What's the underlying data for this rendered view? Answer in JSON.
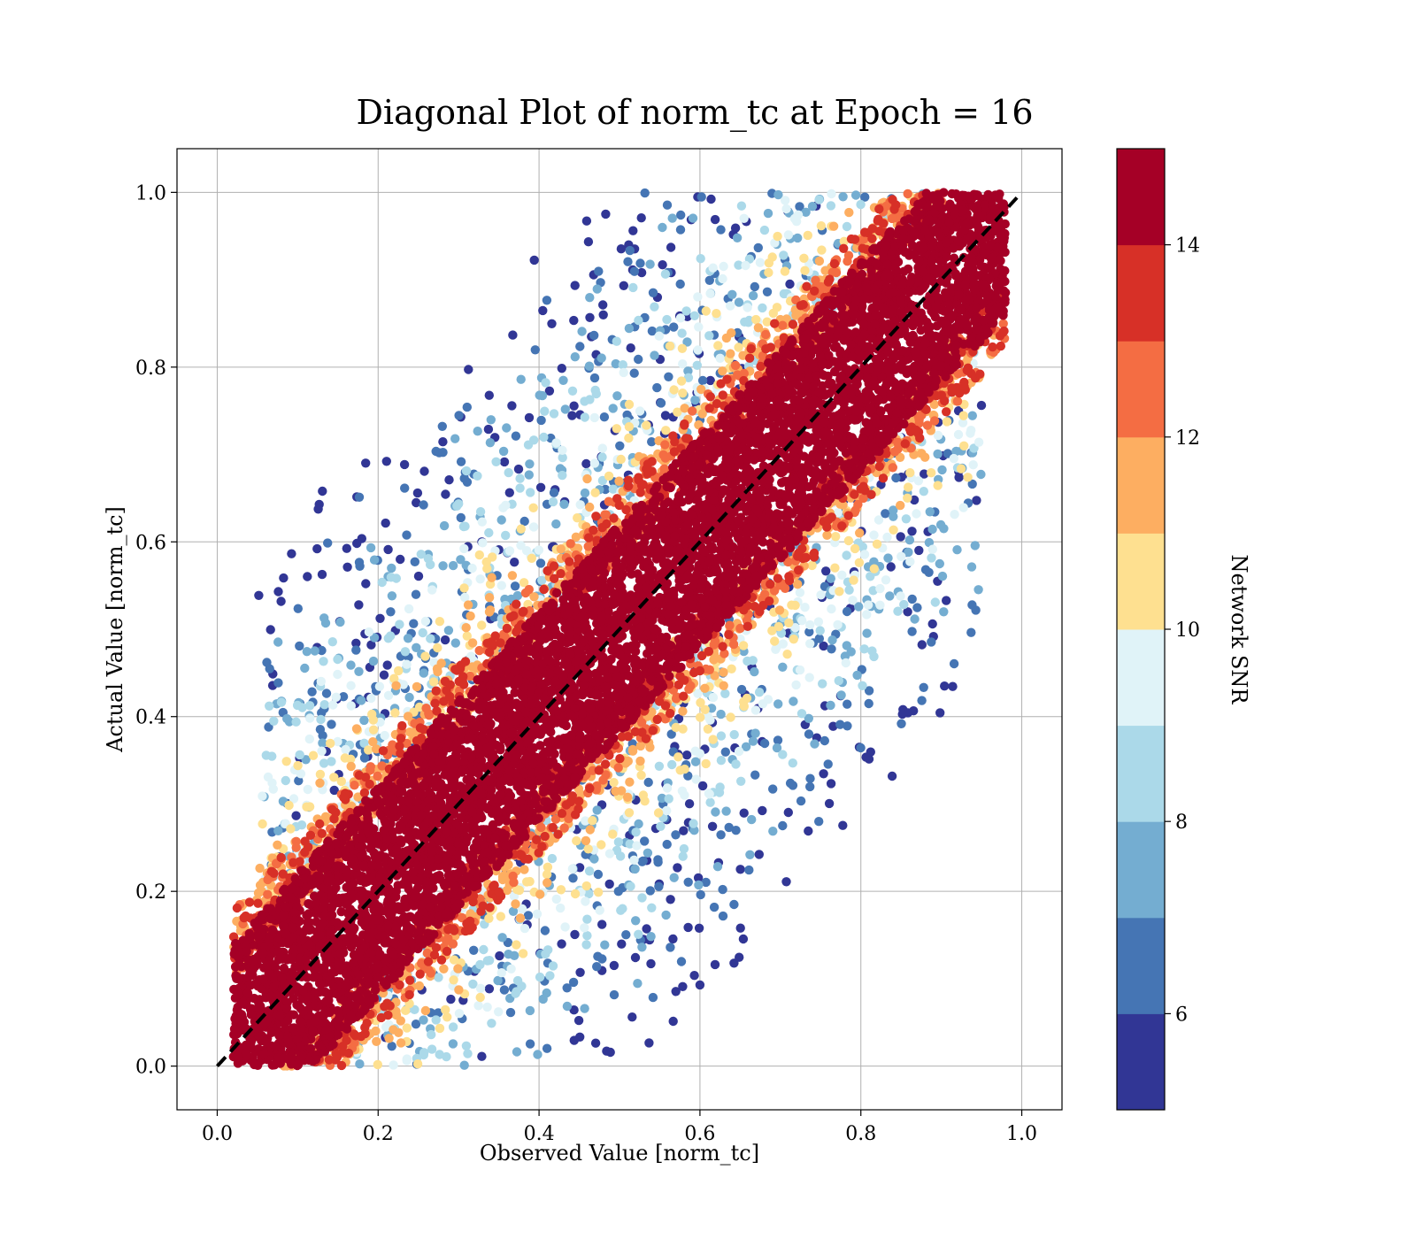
{
  "chart_data": {
    "type": "scatter",
    "title": "Diagonal Plot of norm_tc at Epoch = 16",
    "xlabel": "Observed Value [norm_tc]",
    "ylabel": "Actual Value [norm_tc]",
    "xlim": [
      -0.05,
      1.05
    ],
    "ylim": [
      -0.05,
      1.05
    ],
    "xticks": [
      0.0,
      0.2,
      0.4,
      0.6,
      0.8,
      1.0
    ],
    "xtick_labels": [
      "0.0",
      "0.2",
      "0.4",
      "0.6",
      "0.8",
      "1.0"
    ],
    "yticks": [
      0.0,
      0.2,
      0.4,
      0.6,
      0.8,
      1.0
    ],
    "ytick_labels": [
      "0.0",
      "0.2",
      "0.4",
      "0.6",
      "0.8",
      "1.0"
    ],
    "grid": true,
    "reference_line": {
      "x": [
        0.0,
        1.0
      ],
      "y": [
        0.0,
        1.0
      ],
      "style": "dashed",
      "color": "#000000"
    },
    "colorbar": {
      "label": "Network SNR",
      "range": [
        5,
        15
      ],
      "ticks": [
        6,
        8,
        10,
        12,
        14
      ],
      "tick_labels": [
        "6",
        "8",
        "10",
        "12",
        "14"
      ],
      "colors": [
        "#313695",
        "#4575b4",
        "#74add1",
        "#abd9e9",
        "#e0f3f8",
        "#fee090",
        "#fdae61",
        "#f46d43",
        "#d73027",
        "#a50026"
      ]
    },
    "scatter_summary": {
      "high_snr_color": "#a50026",
      "band_half_width_at_high_snr": 0.12,
      "scatter_spread_at_low_snr": 0.55
    }
  }
}
